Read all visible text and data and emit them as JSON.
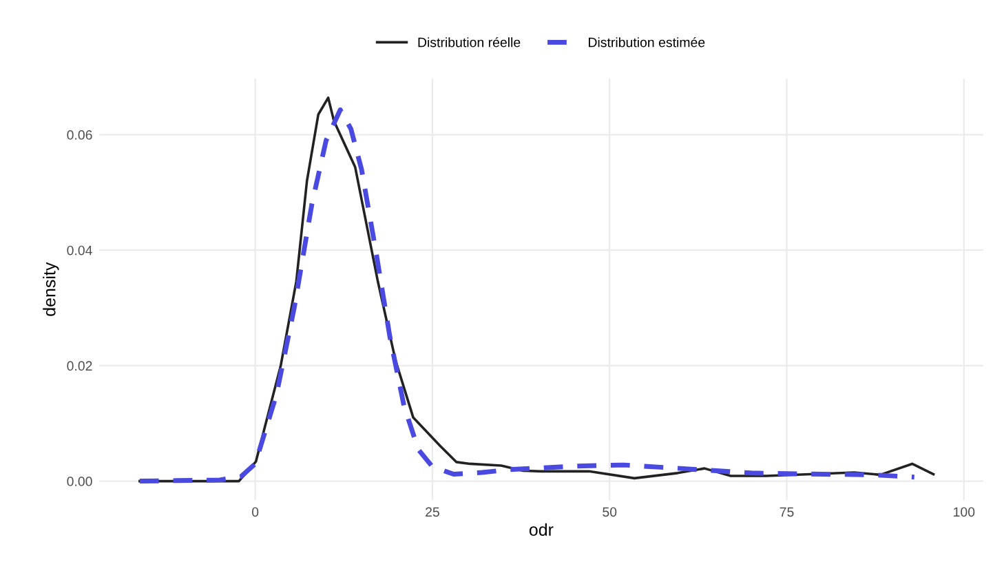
{
  "chart_data": {
    "type": "line",
    "xlabel": "odr",
    "ylabel": "density",
    "xlim": [
      -22,
      102.7
    ],
    "ylim": [
      -0.0033,
      0.0697
    ],
    "xticks": [
      0,
      25,
      50,
      75,
      100
    ],
    "yticks": [
      {
        "value": 0,
        "label": "0.00"
      },
      {
        "value": 0.02,
        "label": "0.02"
      },
      {
        "value": 0.04,
        "label": "0.04"
      },
      {
        "value": 0.06,
        "label": "0.06"
      }
    ],
    "grid": true,
    "legend": "top",
    "marker": "none",
    "series": [
      {
        "name": "Distribution réelle",
        "color": "#222222",
        "line_style": "solid",
        "x": [
          -16.3,
          -8,
          -2.3,
          0.1,
          3.6,
          5.8,
          7.3,
          8.9,
          10.3,
          11.1,
          14.1,
          17.3,
          19.8,
          22.3,
          26.1,
          28.4,
          30.3,
          34.7,
          37.8,
          40.3,
          47.1,
          53.5,
          59.6,
          63.4,
          67.1,
          72.1,
          78.3,
          84.5,
          88.2,
          92.7,
          95.7
        ],
        "values": [
          0,
          0,
          0,
          0.0034,
          0.02,
          0.0346,
          0.052,
          0.0635,
          0.0664,
          0.0624,
          0.0544,
          0.0346,
          0.0209,
          0.011,
          0.0061,
          0.0033,
          0.003,
          0.0027,
          0.0018,
          0.0017,
          0.0017,
          0.0005,
          0.0014,
          0.0022,
          0.0009,
          0.0009,
          0.0012,
          0.0015,
          0.0011,
          0.003,
          0.0012
        ]
      },
      {
        "name": "Distribution estimée",
        "color": "#4a4ae0",
        "line_style": "dashed",
        "x": [
          -16.3,
          -5,
          -2,
          0,
          3,
          5.5,
          8,
          10,
          12,
          13.5,
          15,
          17,
          19,
          21,
          23,
          25,
          28,
          32,
          36,
          45,
          52,
          60,
          70,
          80,
          87,
          93
        ],
        "values": [
          0,
          0.0002,
          0.0008,
          0.003,
          0.015,
          0.03,
          0.048,
          0.059,
          0.0643,
          0.061,
          0.054,
          0.04,
          0.025,
          0.013,
          0.0055,
          0.0025,
          0.0012,
          0.0015,
          0.002,
          0.0026,
          0.0028,
          0.0022,
          0.0014,
          0.0012,
          0.0011,
          0.0007
        ]
      }
    ]
  }
}
